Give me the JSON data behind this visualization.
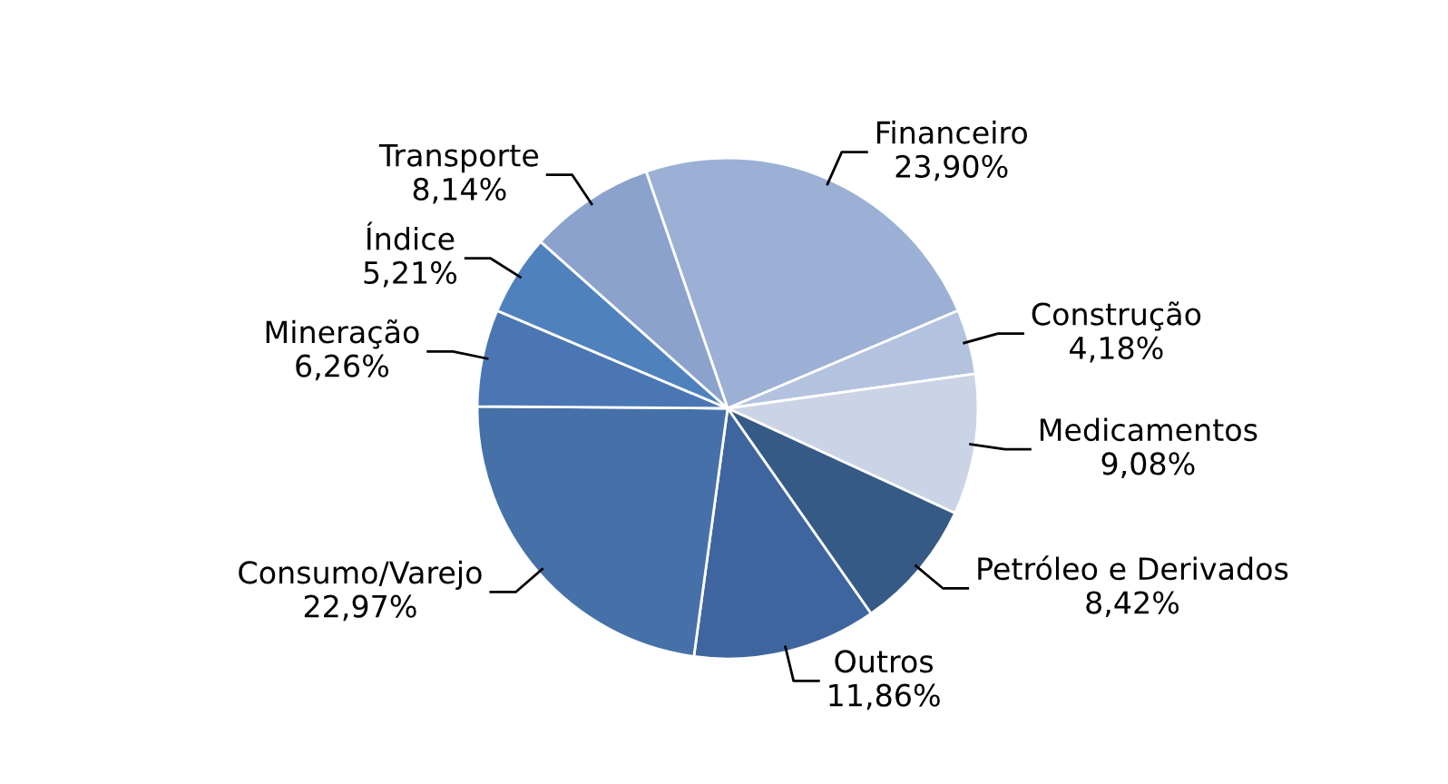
{
  "chart_data": {
    "type": "pie",
    "categories": [
      "Financeiro",
      "Construção",
      "Medicamentos",
      "Petróleo e Derivados",
      "Outros",
      "Consumo/Varejo",
      "Mineração",
      "Índice",
      "Transporte"
    ],
    "values": [
      23.9,
      4.18,
      9.08,
      8.42,
      11.86,
      22.97,
      6.26,
      5.21,
      8.14
    ],
    "value_labels": [
      "23,90%",
      "4,18%",
      "9,08%",
      "8,42%",
      "11,86%",
      "22,97%",
      "6,26%",
      "5,21%",
      "8,14%"
    ],
    "colors": [
      "#9bb0d4",
      "#b3c2de",
      "#cbd4e6",
      "#365a86",
      "#3f659f",
      "#4671a8",
      "#4a77b4",
      "#4f81bd",
      "#8aa2cc"
    ],
    "legend": false
  }
}
